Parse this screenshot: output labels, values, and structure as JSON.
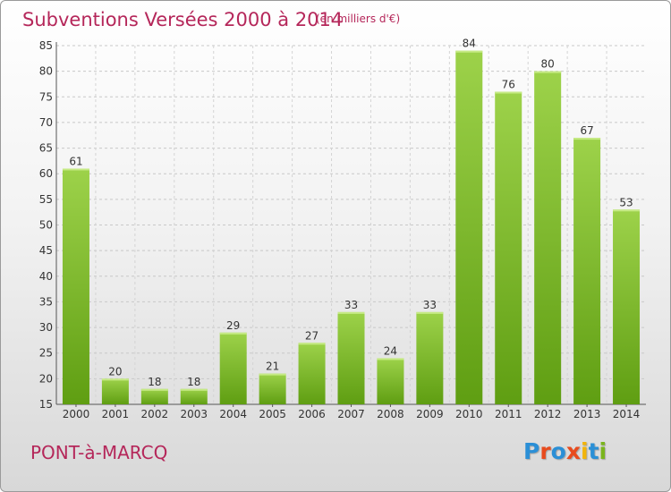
{
  "chart_data": {
    "type": "bar",
    "title": "Subventions Versées 2000 à 2014",
    "subtitle": "(en milliers d'€)",
    "categories": [
      "2000",
      "2001",
      "2002",
      "2003",
      "2004",
      "2005",
      "2006",
      "2007",
      "2008",
      "2009",
      "2010",
      "2011",
      "2012",
      "2013",
      "2014"
    ],
    "values": [
      61,
      20,
      18,
      18,
      29,
      21,
      27,
      33,
      24,
      33,
      84,
      76,
      80,
      67,
      53
    ],
    "ylim": [
      15,
      85
    ],
    "yticks": [
      15,
      20,
      25,
      30,
      35,
      40,
      45,
      50,
      55,
      60,
      65,
      70,
      75,
      80,
      85
    ],
    "grid": true,
    "bar_color_top": "#9dd24a",
    "bar_color_bottom": "#5f9e12"
  },
  "footer": {
    "commune": "PONT-à-MARCQ",
    "brand": "Proxiti",
    "brand_colors": [
      "#2b8fd6",
      "#e84b1e",
      "#2b8fd6",
      "#e84b1e",
      "#f2b40b",
      "#2b8fd6",
      "#7ab51d"
    ]
  }
}
